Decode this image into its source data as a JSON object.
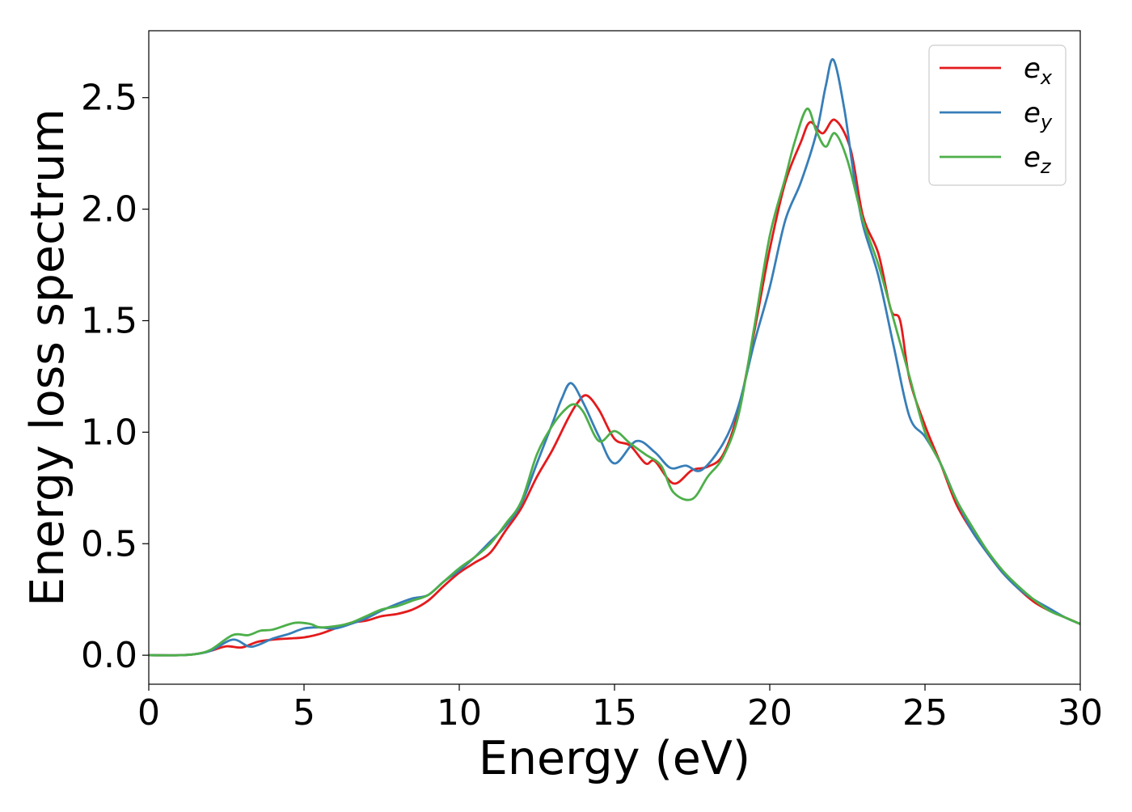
{
  "chart_data": {
    "type": "line",
    "title": "",
    "xlabel": "Energy (eV)",
    "ylabel": "Energy loss spectrum",
    "xlim": [
      0,
      30
    ],
    "ylim": [
      -0.13,
      2.8
    ],
    "xticks": [
      0,
      5,
      10,
      15,
      20,
      25,
      30
    ],
    "xtick_labels": [
      "0",
      "5",
      "10",
      "15",
      "20",
      "25",
      "30"
    ],
    "yticks": [
      0.0,
      0.5,
      1.0,
      1.5,
      2.0,
      2.5
    ],
    "ytick_labels": [
      "0.0",
      "0.5",
      "1.0",
      "1.5",
      "2.0",
      "2.5"
    ],
    "grid": false,
    "legend_position": "top-right",
    "series": [
      {
        "name": "e_x",
        "legend_base": "e",
        "legend_sub": "x",
        "color": "#e41a1c",
        "points": [
          [
            0,
            0
          ],
          [
            1,
            0
          ],
          [
            1.5,
            0.005
          ],
          [
            2,
            0.02
          ],
          [
            2.5,
            0.04
          ],
          [
            3,
            0.035
          ],
          [
            3.5,
            0.06
          ],
          [
            4,
            0.07
          ],
          [
            4.5,
            0.075
          ],
          [
            5,
            0.08
          ],
          [
            5.5,
            0.095
          ],
          [
            6,
            0.12
          ],
          [
            6.5,
            0.145
          ],
          [
            7,
            0.155
          ],
          [
            7.5,
            0.175
          ],
          [
            8,
            0.185
          ],
          [
            8.5,
            0.205
          ],
          [
            9,
            0.245
          ],
          [
            9.5,
            0.31
          ],
          [
            10,
            0.37
          ],
          [
            10.5,
            0.415
          ],
          [
            11,
            0.46
          ],
          [
            11.5,
            0.56
          ],
          [
            12,
            0.66
          ],
          [
            12.5,
            0.8
          ],
          [
            13,
            0.92
          ],
          [
            13.5,
            1.06
          ],
          [
            13.8,
            1.13
          ],
          [
            14.1,
            1.165
          ],
          [
            14.5,
            1.1
          ],
          [
            15,
            0.97
          ],
          [
            15.5,
            0.94
          ],
          [
            16,
            0.86
          ],
          [
            16.3,
            0.87
          ],
          [
            16.9,
            0.77
          ],
          [
            17.5,
            0.83
          ],
          [
            18,
            0.845
          ],
          [
            18.5,
            0.9
          ],
          [
            19,
            1.1
          ],
          [
            19.5,
            1.45
          ],
          [
            20,
            1.82
          ],
          [
            20.5,
            2.12
          ],
          [
            21,
            2.3
          ],
          [
            21.3,
            2.39
          ],
          [
            21.7,
            2.34
          ],
          [
            22.1,
            2.4
          ],
          [
            22.6,
            2.27
          ],
          [
            23,
            1.97
          ],
          [
            23.5,
            1.8
          ],
          [
            23.9,
            1.55
          ],
          [
            24.2,
            1.5
          ],
          [
            24.5,
            1.24
          ],
          [
            25,
            1.03
          ],
          [
            25.5,
            0.86
          ],
          [
            26,
            0.68
          ],
          [
            26.5,
            0.56
          ],
          [
            27,
            0.46
          ],
          [
            27.5,
            0.37
          ],
          [
            28,
            0.3
          ],
          [
            28.5,
            0.24
          ],
          [
            29,
            0.2
          ],
          [
            29.5,
            0.17
          ],
          [
            30,
            0.14
          ]
        ]
      },
      {
        "name": "e_y",
        "legend_base": "e",
        "legend_sub": "y",
        "color": "#377eb8",
        "points": [
          [
            0,
            0
          ],
          [
            1,
            0
          ],
          [
            1.5,
            0.005
          ],
          [
            2,
            0.02
          ],
          [
            2.7,
            0.07
          ],
          [
            3.2,
            0.04
          ],
          [
            3.5,
            0.045
          ],
          [
            4,
            0.075
          ],
          [
            4.5,
            0.095
          ],
          [
            5,
            0.12
          ],
          [
            5.5,
            0.125
          ],
          [
            6,
            0.12
          ],
          [
            6.5,
            0.14
          ],
          [
            7,
            0.165
          ],
          [
            7.5,
            0.2
          ],
          [
            8,
            0.23
          ],
          [
            8.5,
            0.255
          ],
          [
            9,
            0.27
          ],
          [
            9.5,
            0.33
          ],
          [
            10,
            0.38
          ],
          [
            10.5,
            0.44
          ],
          [
            11,
            0.51
          ],
          [
            11.5,
            0.58
          ],
          [
            12,
            0.68
          ],
          [
            12.5,
            0.86
          ],
          [
            13,
            1.04
          ],
          [
            13.3,
            1.15
          ],
          [
            13.6,
            1.22
          ],
          [
            14,
            1.13
          ],
          [
            14.5,
            0.98
          ],
          [
            15,
            0.86
          ],
          [
            15.7,
            0.96
          ],
          [
            16.3,
            0.91
          ],
          [
            16.8,
            0.84
          ],
          [
            17.3,
            0.85
          ],
          [
            17.8,
            0.83
          ],
          [
            18.5,
            0.95
          ],
          [
            19,
            1.12
          ],
          [
            19.5,
            1.4
          ],
          [
            20,
            1.65
          ],
          [
            20.5,
            1.95
          ],
          [
            21,
            2.12
          ],
          [
            21.5,
            2.34
          ],
          [
            21.8,
            2.55
          ],
          [
            22.05,
            2.67
          ],
          [
            22.4,
            2.45
          ],
          [
            22.7,
            2.16
          ],
          [
            23,
            1.93
          ],
          [
            23.5,
            1.7
          ],
          [
            24,
            1.38
          ],
          [
            24.5,
            1.07
          ],
          [
            25,
            0.98
          ],
          [
            25.5,
            0.86
          ],
          [
            26,
            0.7
          ],
          [
            26.5,
            0.56
          ],
          [
            27,
            0.46
          ],
          [
            27.5,
            0.37
          ],
          [
            28,
            0.3
          ],
          [
            28.5,
            0.25
          ],
          [
            29,
            0.21
          ],
          [
            29.5,
            0.17
          ],
          [
            30,
            0.14
          ]
        ]
      },
      {
        "name": "e_z",
        "legend_base": "e",
        "legend_sub": "z",
        "color": "#4daf4a",
        "points": [
          [
            0,
            0
          ],
          [
            1,
            0
          ],
          [
            1.5,
            0.005
          ],
          [
            2,
            0.025
          ],
          [
            2.7,
            0.09
          ],
          [
            3.2,
            0.09
          ],
          [
            3.6,
            0.11
          ],
          [
            4,
            0.115
          ],
          [
            4.7,
            0.145
          ],
          [
            5.2,
            0.14
          ],
          [
            5.5,
            0.125
          ],
          [
            6,
            0.13
          ],
          [
            6.5,
            0.145
          ],
          [
            7,
            0.175
          ],
          [
            7.5,
            0.205
          ],
          [
            8,
            0.22
          ],
          [
            8.5,
            0.245
          ],
          [
            9,
            0.27
          ],
          [
            9.5,
            0.33
          ],
          [
            10,
            0.39
          ],
          [
            10.5,
            0.44
          ],
          [
            11,
            0.5
          ],
          [
            11.5,
            0.59
          ],
          [
            12,
            0.69
          ],
          [
            12.5,
            0.9
          ],
          [
            13,
            1.03
          ],
          [
            13.4,
            1.1
          ],
          [
            13.7,
            1.125
          ],
          [
            14,
            1.09
          ],
          [
            14.5,
            0.96
          ],
          [
            15,
            1.005
          ],
          [
            15.5,
            0.95
          ],
          [
            16,
            0.9
          ],
          [
            16.5,
            0.85
          ],
          [
            16.9,
            0.73
          ],
          [
            17.5,
            0.7
          ],
          [
            18,
            0.8
          ],
          [
            18.5,
            0.89
          ],
          [
            19,
            1.08
          ],
          [
            19.5,
            1.47
          ],
          [
            20,
            1.88
          ],
          [
            20.5,
            2.14
          ],
          [
            20.8,
            2.3
          ],
          [
            21.2,
            2.45
          ],
          [
            21.5,
            2.35
          ],
          [
            21.8,
            2.28
          ],
          [
            22.1,
            2.34
          ],
          [
            22.5,
            2.22
          ],
          [
            23,
            1.95
          ],
          [
            23.5,
            1.75
          ],
          [
            24,
            1.5
          ],
          [
            24.5,
            1.25
          ],
          [
            25,
            1.0
          ],
          [
            25.5,
            0.86
          ],
          [
            26,
            0.7
          ],
          [
            26.5,
            0.58
          ],
          [
            27,
            0.47
          ],
          [
            27.5,
            0.38
          ],
          [
            28,
            0.31
          ],
          [
            28.5,
            0.25
          ],
          [
            29,
            0.2
          ],
          [
            29.5,
            0.17
          ],
          [
            30,
            0.14
          ]
        ]
      }
    ]
  }
}
